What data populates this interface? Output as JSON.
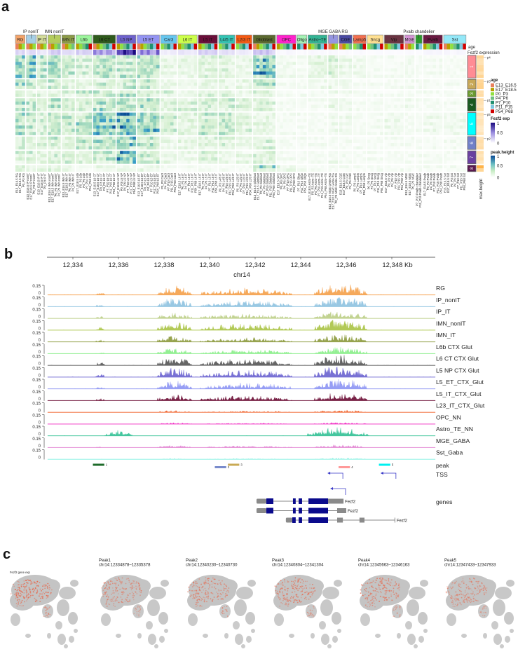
{
  "panel_labels": {
    "a": "a",
    "b": "b",
    "c": "c"
  },
  "heatmap": {
    "age_row_label": "age",
    "expr_row_label": "Fezf2 expression",
    "max_height_label": "max.height",
    "groups": [
      {
        "name": "RG",
        "color": "#f4a46a",
        "ages": [
          0,
          1,
          2
        ],
        "fezf2": 0.2,
        "profile": [
          0.85,
          0.6,
          0.3,
          0.55,
          0.55,
          0.4,
          0.4,
          0.3
        ]
      },
      {
        "name": "IP nonIT",
        "color": "#a6cfe6",
        "ages": [
          0,
          1,
          2
        ],
        "fezf2": 0.2,
        "above": true,
        "profile": [
          0.75,
          0.5,
          0.3,
          0.5,
          0.45,
          0.35,
          0.35,
          0.2
        ]
      },
      {
        "name": "IP IT",
        "color": "#d4dc9a",
        "ages": [
          0,
          1,
          2
        ],
        "fezf2": 0.15,
        "profile": [
          0.5,
          0.3,
          0.25,
          0.4,
          0.35,
          0.3,
          0.3,
          0.2
        ]
      },
      {
        "name": "IMN nonIT",
        "color": "#b4cc5c",
        "ages": [
          0,
          1,
          2,
          3
        ],
        "fezf2": 0.3,
        "above": true,
        "profile": [
          0.65,
          0.45,
          0.3,
          0.5,
          0.55,
          0.4,
          0.35,
          0.3
        ]
      },
      {
        "name": "IMN IT",
        "color": "#8c9a48",
        "ages": [
          0,
          1,
          2,
          3
        ],
        "fezf2": 0.2,
        "profile": [
          0.45,
          0.3,
          0.3,
          0.4,
          0.45,
          0.3,
          0.4,
          0.2
        ]
      },
      {
        "name": "L6b",
        "color": "#9cf59c",
        "ages": [
          1,
          2,
          3,
          4,
          6
        ],
        "fezf2": 0.25,
        "profile": [
          0.35,
          0.3,
          0.4,
          0.35,
          0.55,
          0.45,
          0.3,
          0.1
        ]
      },
      {
        "name": "L6 CT",
        "color": "#2f5a1c",
        "ages": [
          0,
          1,
          2,
          3,
          4,
          5,
          6
        ],
        "fezf2": 0.5,
        "profile": [
          0.55,
          0.4,
          0.45,
          0.55,
          0.85,
          0.55,
          0.45,
          0.2
        ]
      },
      {
        "name": "L5 NP",
        "color": "#6e62cc",
        "ages": [
          1,
          2,
          3,
          4,
          5,
          6
        ],
        "fezf2": 0.95,
        "profile": [
          0.45,
          0.45,
          0.5,
          0.55,
          0.95,
          0.75,
          0.85,
          0.2
        ]
      },
      {
        "name": "L5 ET",
        "color": "#9494f2",
        "ages": [
          0,
          1,
          2,
          3,
          4,
          5,
          6
        ],
        "fezf2": 0.6,
        "profile": [
          0.55,
          0.4,
          0.45,
          0.55,
          0.75,
          0.55,
          0.45,
          0.2
        ]
      },
      {
        "name": "Car3",
        "color": "#66c6ee",
        "ages": [
          2,
          3,
          4,
          5,
          6
        ],
        "fezf2": 0.1,
        "profile": [
          0.2,
          0.2,
          0.3,
          0.3,
          0.4,
          0.2,
          0.2,
          0.1
        ]
      },
      {
        "name": "L6 IT",
        "color": "#ccff4a",
        "ages": [
          1,
          2,
          3,
          4,
          5,
          6
        ],
        "fezf2": 0.15,
        "profile": [
          0.2,
          0.2,
          0.2,
          0.3,
          0.3,
          0.2,
          0.2,
          0.1
        ]
      },
      {
        "name": "L5 IT",
        "color": "#6a0f3a",
        "ages": [
          1,
          2,
          3,
          4,
          5,
          6
        ],
        "fezf2": 0.3,
        "profile": [
          0.3,
          0.25,
          0.3,
          0.4,
          0.45,
          0.3,
          0.3,
          0.1
        ]
      },
      {
        "name": "L4/5 IT",
        "color": "#34c4b4",
        "ages": [
          2,
          3,
          4,
          5,
          6
        ],
        "fezf2": 0.2,
        "profile": [
          0.3,
          0.2,
          0.3,
          0.4,
          0.5,
          0.3,
          0.2,
          0.1
        ]
      },
      {
        "name": "L2/3 IT",
        "color": "#f45a14",
        "ages": [
          2,
          3,
          4,
          5,
          6
        ],
        "fezf2": 0.1,
        "profile": [
          0.2,
          0.2,
          0.2,
          0.3,
          0.3,
          0.2,
          0.2,
          0.1
        ]
      },
      {
        "name": "Glioblast",
        "color": "#5c6a30",
        "ages": [
          0,
          1,
          2,
          3,
          4,
          5,
          6
        ],
        "fezf2": 0.3,
        "profile": [
          0.85,
          0.5,
          0.3,
          0.3,
          0.25,
          0.3,
          0.3,
          0.6
        ]
      },
      {
        "name": "OPC",
        "color": "#ff22cc",
        "ages": [
          1,
          2,
          3,
          4,
          5,
          6
        ],
        "fezf2": 0.05,
        "profile": [
          0.15,
          0.1,
          0.1,
          0.1,
          0.1,
          0.1,
          0.1,
          0.2
        ]
      },
      {
        "name": "Oligo",
        "color": "#a4f2b4",
        "ages": [
          4,
          5,
          6
        ],
        "fezf2": 0.03,
        "profile": [
          0.1,
          0.1,
          0.1,
          0.1,
          0.1,
          0.1,
          0.1,
          0.1
        ]
      },
      {
        "name": "Astro–TE",
        "color": "#34b494",
        "ages": [
          1,
          2,
          3,
          4,
          5,
          6
        ],
        "fezf2": 0.04,
        "profile": [
          0.25,
          0.15,
          0.1,
          0.1,
          0.1,
          0.1,
          0.1,
          0.1
        ]
      },
      {
        "name": "MGE GABA RG",
        "color": "#9696e0",
        "ages": [
          0,
          1,
          2
        ],
        "fezf2": 0.04,
        "above": true,
        "profile": [
          0.35,
          0.2,
          0.15,
          0.2,
          0.15,
          0.1,
          0.15,
          0.1
        ]
      },
      {
        "name": "CGE",
        "color": "#4a4aa2",
        "ages": [
          0,
          1,
          2,
          3
        ],
        "fezf2": 0.03,
        "profile": [
          0.2,
          0.15,
          0.15,
          0.15,
          0.15,
          0.1,
          0.1,
          0.1
        ]
      },
      {
        "name": "Lamp5",
        "color": "#f27050",
        "ages": [
          2,
          3,
          4,
          6
        ],
        "fezf2": 0.03,
        "profile": [
          0.15,
          0.1,
          0.1,
          0.1,
          0.1,
          0.1,
          0.1,
          0.1
        ]
      },
      {
        "name": "Sncg",
        "color": "#ffe092",
        "ages": [
          2,
          3,
          4,
          5,
          6
        ],
        "fezf2": 0.03,
        "profile": [
          0.1,
          0.1,
          0.1,
          0.1,
          0.1,
          0.1,
          0.1,
          0.1
        ]
      },
      {
        "name": "Vip",
        "color": "#6a3442",
        "ages": [
          1,
          2,
          3,
          4,
          5,
          6
        ],
        "fezf2": 0.03,
        "profile": [
          0.1,
          0.1,
          0.1,
          0.1,
          0.15,
          0.1,
          0.1,
          0.1
        ]
      },
      {
        "name": "MGE",
        "color": "#d494d4",
        "ages": [
          0,
          1,
          2
        ],
        "fezf2": 0.03,
        "profile": [
          0.15,
          0.1,
          0.1,
          0.15,
          0.1,
          0.1,
          0.1,
          0.1
        ]
      },
      {
        "name": "Pvalb chandelier",
        "color": "#2c9a2c",
        "ages": [
          4,
          5
        ],
        "fezf2": 0.03,
        "above": true,
        "short": true,
        "profile": [
          0.1,
          0.1,
          0.1,
          0.1,
          0.1,
          0.1,
          0.1,
          0.1
        ]
      },
      {
        "name": "Pvalb",
        "color": "#6a1a42",
        "ages": [
          1,
          2,
          3,
          4,
          5,
          6
        ],
        "fezf2": 0.05,
        "profile": [
          0.1,
          0.1,
          0.1,
          0.1,
          0.15,
          0.1,
          0.1,
          0.1
        ]
      },
      {
        "name": "Sst",
        "color": "#94e8f8",
        "ages": [
          0,
          1,
          2,
          3,
          4,
          5,
          6
        ],
        "fezf2": 0.05,
        "profile": [
          0.1,
          0.1,
          0.1,
          0.1,
          0.15,
          0.1,
          0.1,
          0.1
        ]
      }
    ],
    "clusters": [
      {
        "id": "1",
        "color": "#ff8c94",
        "rows": 7,
        "peak": "p4",
        "maxh": 0.35
      },
      {
        "id": "2",
        "color": "#c8a858",
        "rows": 3,
        "peak": "p3",
        "maxh": 0.4
      },
      {
        "id": "3",
        "color": "#6a9a30",
        "rows": 2,
        "maxh": 0.4
      },
      {
        "id": "4",
        "color": "#1a5a20",
        "rows": 4,
        "peak": "p1",
        "maxh": 0.3
      },
      {
        "id": "5",
        "color": "#00ffff",
        "rows": 7,
        "peak": "p5",
        "maxh": 0.25
      },
      {
        "id": "6",
        "color": "#7080c8",
        "rows": 4,
        "peak": "p2",
        "maxh": 0.3
      },
      {
        "id": "7",
        "color": "#6a40a0",
        "rows": 4,
        "maxh": 0.25
      },
      {
        "id": "8",
        "color": "#5a1a50",
        "rows": 2,
        "maxh": 0.8
      }
    ],
    "legends": {
      "age": {
        "title": "age",
        "items": [
          {
            "label": "E13_E16.5",
            "color": "#e8805e"
          },
          {
            "label": "E17_E18.5",
            "color": "#b8a000"
          },
          {
            "label": "P0_P3",
            "color": "#90e040"
          },
          {
            "label": "P4_P6",
            "color": "#70c080"
          },
          {
            "label": "P7_P10",
            "color": "#209070"
          },
          {
            "label": "P11_P15",
            "color": "#80c8e0"
          },
          {
            "label": "P54_P68",
            "color": "#d00000"
          }
        ]
      },
      "fezf2_exp": {
        "title": "Fezf2 exp",
        "ticks": [
          "1",
          "0.5",
          "0"
        ]
      },
      "peak_height": {
        "title": "peak.height",
        "ticks": [
          "1",
          "0.5",
          "0"
        ]
      }
    }
  },
  "genome": {
    "chrom": "chr14",
    "range_kb": [
      12332.86,
      12349.9
    ],
    "ticks": [
      {
        "pos": 12334,
        "label": "12,334"
      },
      {
        "pos": 12336,
        "label": "12,336"
      },
      {
        "pos": 12338,
        "label": "12,338"
      },
      {
        "pos": 12340,
        "label": "12,340"
      },
      {
        "pos": 12342,
        "label": "12,342"
      },
      {
        "pos": 12344,
        "label": "12,344"
      },
      {
        "pos": 12346,
        "label": "12,346"
      },
      {
        "pos": 12348,
        "label": "12,348 Kb"
      }
    ],
    "ytick_top": "0.15",
    "ytick_zero": "0",
    "tracks": [
      {
        "label": "RG",
        "color": "#f5a04a",
        "amp": 0.85
      },
      {
        "label": "IP_nonIT",
        "color": "#8fc3e0",
        "amp": 0.8
      },
      {
        "label": "IP_IT",
        "color": "#bccf86",
        "amp": 0.55
      },
      {
        "label": "IMN_nonIT",
        "color": "#aac444",
        "amp": 0.8
      },
      {
        "label": "IMN_IT",
        "color": "#8c9a3c",
        "amp": 0.55
      },
      {
        "label": "L6b CTX Glut",
        "color": "#88ee88",
        "amp": 0.5
      },
      {
        "label": "L6 CT CTX Glut",
        "color": "#555555",
        "amp": 0.8
      },
      {
        "label": "L5 NP CTX Glut",
        "color": "#6a62d0",
        "amp": 0.9
      },
      {
        "label": "L5_ET_CTX_Glut",
        "color": "#8c94f4",
        "amp": 0.75
      },
      {
        "label": "L5_IT_CTX_Glut",
        "color": "#6a0a32",
        "amp": 0.6
      },
      {
        "label": "L23_IT_CTX_Glut",
        "color": "#f05a20",
        "amp": 0.2
      },
      {
        "label": "OPC_NN",
        "color": "#f020c0",
        "amp": 0.15
      },
      {
        "label": "Astro_TE_NN",
        "color": "#30c094",
        "amp": 0.7,
        "regions": [
          [
            12335.4,
            12336.6,
            0.6
          ],
          [
            12344.3,
            12347.0,
            0.9
          ]
        ]
      },
      {
        "label": "MGE_GABA",
        "color": "#e07ed0",
        "amp": 0.25
      },
      {
        "label": "Sst_Gaba",
        "color": "#7ef0e0",
        "amp": 0.12
      }
    ],
    "default_regions": [
      [
        12335.0,
        12335.4,
        0.3
      ],
      [
        12337.7,
        12339.2,
        0.8
      ],
      [
        12339.6,
        12343.6,
        0.6
      ],
      [
        12344.6,
        12346.9,
        1.0
      ]
    ],
    "peak_track_label": "peak",
    "tss_track_label": "TSS",
    "genes_track_label": "genes",
    "peaks": [
      {
        "id": "1",
        "start": 12334.878,
        "end": 12335.378,
        "color": "#1e6b2a",
        "row": 0
      },
      {
        "id": "2",
        "start": 12340.23,
        "end": 12340.73,
        "color": "#7a8ccc",
        "row": 1
      },
      {
        "id": "3",
        "start": 12340.804,
        "end": 12341.304,
        "color": "#c9aa55",
        "row": 0
      },
      {
        "id": "4",
        "start": 12345.663,
        "end": 12346.163,
        "color": "#ff9a9a",
        "row": 1
      },
      {
        "id": "5",
        "start": 12347.433,
        "end": 12347.933,
        "color": "#00f0f0",
        "row": 0
      }
    ],
    "tss": [
      {
        "pos": 12345.85,
        "row": 0
      },
      {
        "pos": 12348.18,
        "row": 0
      },
      {
        "pos": 12345.97,
        "row": 1
      }
    ],
    "transcripts": [
      {
        "name": "Fezf2",
        "start": 12342.06,
        "end": 12345.88,
        "exons": [
          [
            12342.06,
            12342.49,
            "utr"
          ],
          [
            12342.49,
            12342.8,
            "cds"
          ],
          [
            12343.66,
            12343.78,
            "cds"
          ],
          [
            12343.91,
            12344.06,
            "cds"
          ],
          [
            12344.34,
            12345.2,
            "cds"
          ],
          [
            12345.2,
            12345.88,
            "utr"
          ]
        ]
      },
      {
        "name": "Fezf2",
        "start": 12342.06,
        "end": 12346.0,
        "exons": [
          [
            12342.06,
            12342.49,
            "utr"
          ],
          [
            12342.49,
            12342.8,
            "cds"
          ],
          [
            12343.66,
            12343.78,
            "cds"
          ],
          [
            12343.91,
            12344.06,
            "cds"
          ],
          [
            12344.34,
            12345.2,
            "cds"
          ],
          [
            12345.6,
            12346.0,
            "utr"
          ]
        ]
      },
      {
        "name": "Fezf2",
        "start": 12343.35,
        "end": 12348.15,
        "exons": [
          [
            12343.35,
            12343.63,
            "utr"
          ],
          [
            12343.63,
            12343.78,
            "cds"
          ],
          [
            12343.91,
            12344.06,
            "cds"
          ],
          [
            12344.34,
            12345.2,
            "cds"
          ],
          [
            12345.6,
            12345.85,
            "utr"
          ],
          [
            12346.58,
            12346.8,
            "utr"
          ],
          [
            12348.12,
            12348.15,
            "utr"
          ]
        ]
      }
    ]
  },
  "umaps": [
    {
      "title": "Fezf2 gene exp",
      "subtitle": "",
      "intensity": 1.0
    },
    {
      "title": "Peak1",
      "subtitle": "chr14:12334878–12335378",
      "intensity": 0.75
    },
    {
      "title": "Peak2",
      "subtitle": "chr14:12340230–12340730",
      "intensity": 0.8
    },
    {
      "title": "Peak3",
      "subtitle": "chr14:12340804–12341304",
      "intensity": 0.85
    },
    {
      "title": "Peak4",
      "subtitle": "chr14:12345663–12346163",
      "intensity": 0.8
    },
    {
      "title": "Peak5",
      "subtitle": "chr14:12347433–12347933",
      "intensity": 0.7
    }
  ],
  "umap_highlight_color": "#e8664a"
}
